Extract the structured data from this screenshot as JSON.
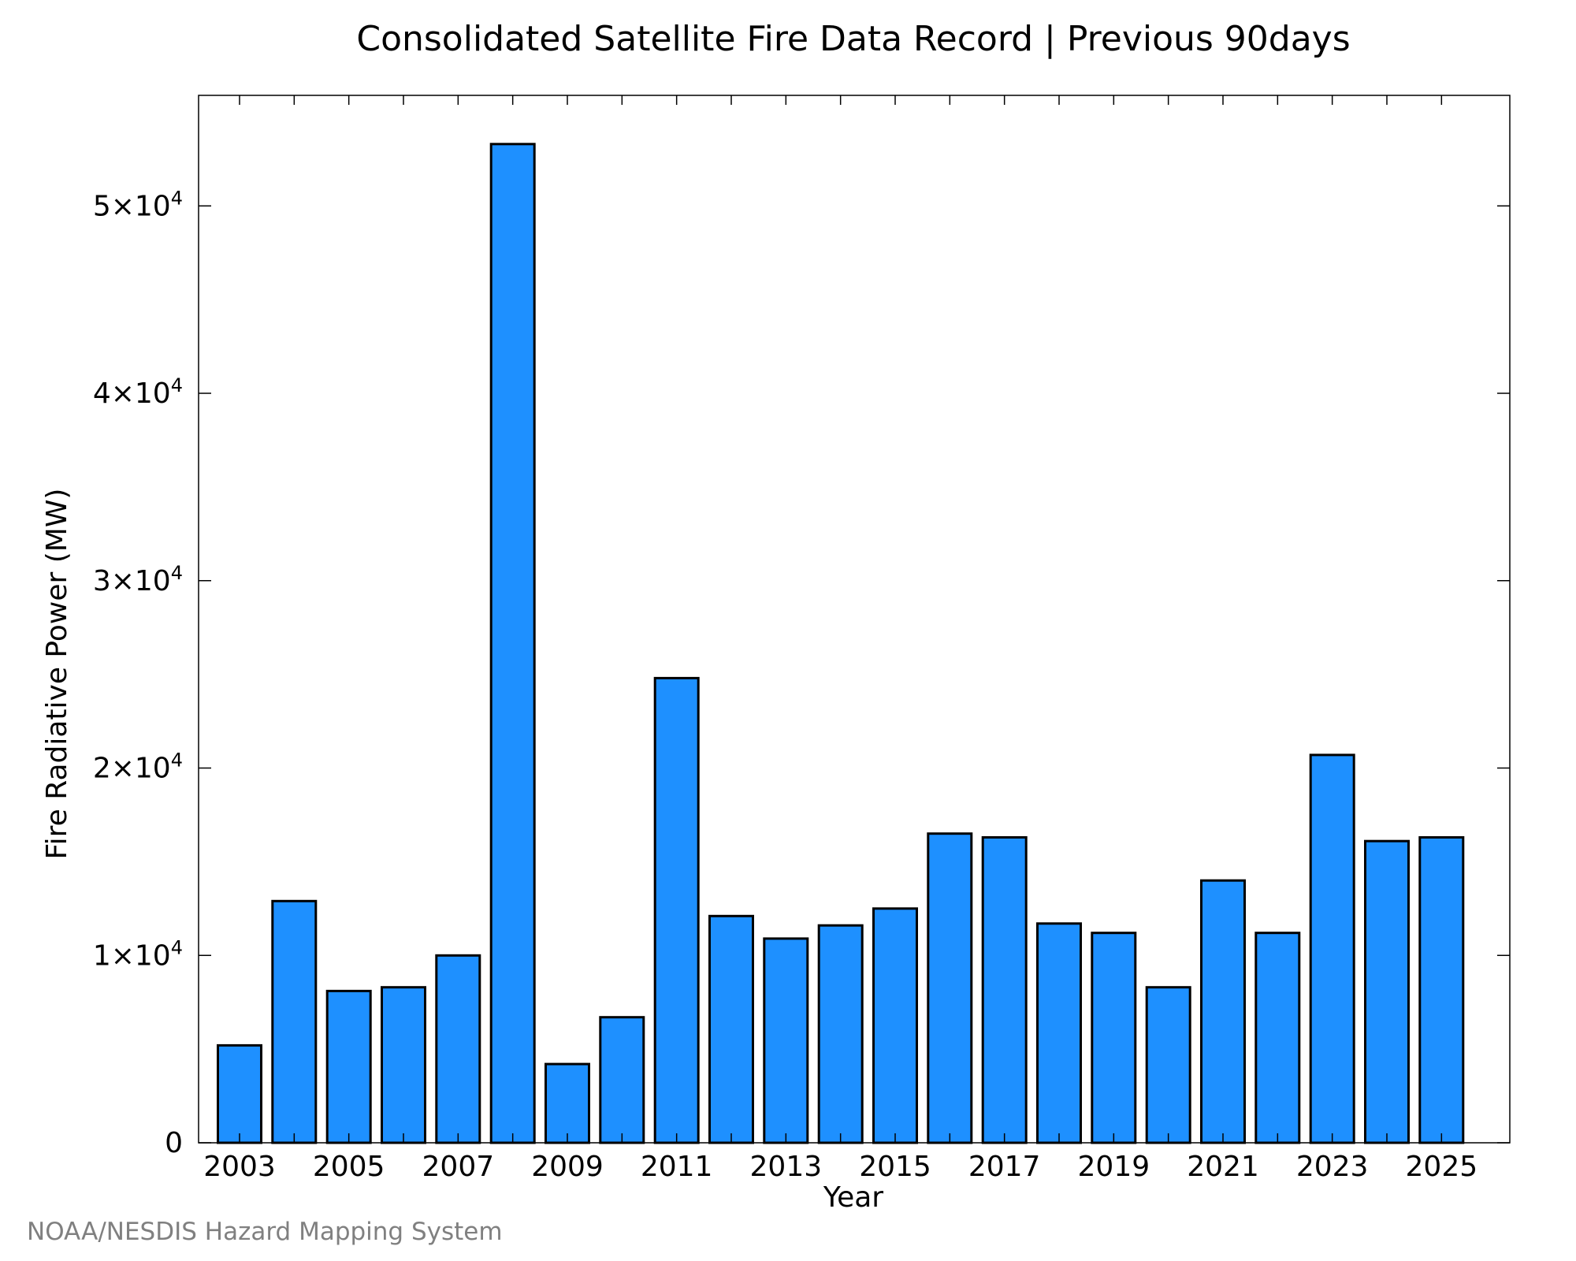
{
  "chart_data": {
    "type": "bar",
    "title": "Consolidated Satellite Fire Data Record | Previous 90days",
    "xlabel": "Year",
    "ylabel": "Fire Radiative Power (MW)",
    "credit": "NOAA/NESDIS Hazard Mapping System",
    "categories": [
      "2003",
      "2004",
      "2005",
      "2006",
      "2007",
      "2008",
      "2009",
      "2010",
      "2011",
      "2012",
      "2013",
      "2014",
      "2015",
      "2016",
      "2017",
      "2018",
      "2019",
      "2020",
      "2021",
      "2022",
      "2023",
      "2024",
      "2025"
    ],
    "values": [
      5200,
      12900,
      8100,
      8300,
      10000,
      53300,
      4200,
      6700,
      24800,
      12100,
      10900,
      11600,
      12500,
      16500,
      16300,
      11700,
      11200,
      8300,
      14000,
      11200,
      20700,
      16100,
      16300
    ],
    "x_tick_labels": [
      "2003",
      "2005",
      "2007",
      "2009",
      "2011",
      "2013",
      "2015",
      "2017",
      "2019",
      "2021",
      "2023",
      "2025"
    ],
    "y_ticks": [
      {
        "value": 0,
        "mantissa": "0",
        "exponent": ""
      },
      {
        "value": 10000,
        "mantissa": "1×10",
        "exponent": "4"
      },
      {
        "value": 20000,
        "mantissa": "2×10",
        "exponent": "4"
      },
      {
        "value": 30000,
        "mantissa": "3×10",
        "exponent": "4"
      },
      {
        "value": 40000,
        "mantissa": "4×10",
        "exponent": "4"
      },
      {
        "value": 50000,
        "mantissa": "5×10",
        "exponent": "4"
      }
    ],
    "ylim": [
      0,
      55900
    ],
    "xlim": [
      2002.25,
      2026.25
    ],
    "grid": false,
    "legend": "none",
    "colors": {
      "bar": "#1e90ff",
      "edge": "#000000",
      "credit": "#808080"
    }
  }
}
